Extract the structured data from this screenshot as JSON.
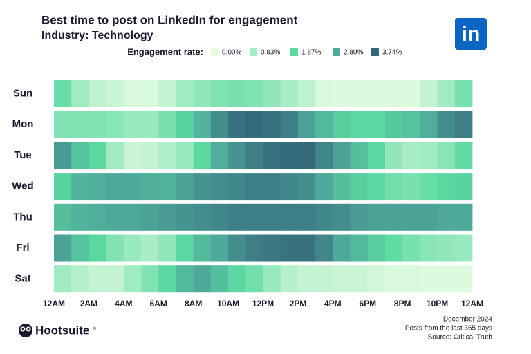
{
  "chart_data": {
    "type": "heatmap",
    "title": "Best time to post on LinkedIn for engagement",
    "subtitle": "Industry: Technology",
    "legend_title": "Engagement rate:",
    "color_scale": [
      {
        "value": 0,
        "label": "0.00%",
        "color": "#e5fce1"
      },
      {
        "value": 0.93,
        "label": "0.93%",
        "color": "#a7ecc5"
      },
      {
        "value": 1.87,
        "label": "1.87%",
        "color": "#5bdaa1"
      },
      {
        "value": 2.8,
        "label": "2.80%",
        "color": "#4fa99a"
      },
      {
        "value": 3.74,
        "label": "3.74%",
        "color": "#34677c"
      }
    ],
    "rows": [
      "Sun",
      "Mon",
      "Tue",
      "Wed",
      "Thu",
      "Fri",
      "Sat"
    ],
    "xlim": [
      0,
      24
    ],
    "xticks": [
      {
        "value": 0,
        "label": "12AM"
      },
      {
        "value": 2,
        "label": "2AM"
      },
      {
        "value": 4,
        "label": "4AM"
      },
      {
        "value": 6,
        "label": "6AM"
      },
      {
        "value": 8,
        "label": "8AM"
      },
      {
        "value": 10,
        "label": "10AM"
      },
      {
        "value": 12,
        "label": "12PM"
      },
      {
        "value": 14,
        "label": "2PM"
      },
      {
        "value": 16,
        "label": "4PM"
      },
      {
        "value": 18,
        "label": "6PM"
      },
      {
        "value": 20,
        "label": "8PM"
      },
      {
        "value": 22,
        "label": "10PM"
      },
      {
        "value": 24,
        "label": "12AM"
      }
    ],
    "values": [
      [
        1.7,
        1.0,
        0.6,
        0.4,
        0.2,
        0.2,
        0.5,
        1.0,
        1.2,
        1.4,
        1.5,
        1.4,
        1.2,
        0.9,
        0.6,
        0.2,
        0.1,
        0.1,
        0.1,
        0.1,
        0.1,
        0.5,
        1.0,
        1.5
      ],
      [
        1.4,
        1.4,
        1.4,
        1.3,
        1.1,
        1.1,
        1.5,
        2.0,
        2.6,
        3.2,
        3.6,
        3.7,
        3.6,
        3.4,
        2.9,
        2.5,
        2.1,
        1.9,
        1.9,
        2.2,
        2.3,
        2.7,
        3.2,
        3.4
      ],
      [
        3.0,
        2.3,
        1.9,
        1.0,
        0.4,
        0.5,
        0.8,
        1.1,
        1.9,
        2.7,
        3.1,
        3.4,
        3.6,
        3.7,
        3.7,
        3.3,
        2.9,
        2.4,
        1.9,
        1.2,
        0.9,
        1.0,
        1.3,
        1.8
      ],
      [
        2.0,
        2.6,
        2.7,
        2.8,
        2.8,
        2.7,
        2.6,
        2.9,
        3.1,
        3.2,
        3.3,
        3.4,
        3.4,
        3.3,
        3.2,
        2.8,
        2.4,
        2.1,
        1.9,
        1.6,
        1.5,
        1.7,
        1.9,
        2.0
      ],
      [
        2.4,
        2.6,
        2.7,
        2.8,
        2.8,
        2.9,
        3.0,
        3.1,
        3.2,
        3.3,
        3.4,
        3.4,
        3.4,
        3.4,
        3.4,
        3.3,
        3.2,
        3.0,
        2.9,
        2.9,
        2.9,
        2.9,
        2.8,
        2.8
      ],
      [
        2.9,
        2.3,
        1.9,
        1.4,
        1.1,
        0.9,
        1.2,
        1.9,
        2.5,
        2.8,
        3.2,
        3.4,
        3.5,
        3.6,
        3.6,
        3.3,
        2.8,
        2.5,
        2.1,
        1.8,
        1.5,
        1.3,
        1.2,
        1.1
      ],
      [
        1.0,
        0.7,
        0.5,
        0.5,
        1.0,
        1.4,
        1.9,
        2.5,
        2.8,
        2.4,
        1.9,
        1.6,
        1.1,
        0.7,
        0.5,
        0.5,
        0.4,
        0.4,
        0.3,
        0.2,
        0.2,
        0.1,
        0.1,
        0.1
      ]
    ],
    "logo": "in",
    "brand": "Hootsuite",
    "brand_mark": "®",
    "notes": [
      "December 2024",
      "Posts from the last 365 days",
      "Source: Critical Truth"
    ]
  }
}
